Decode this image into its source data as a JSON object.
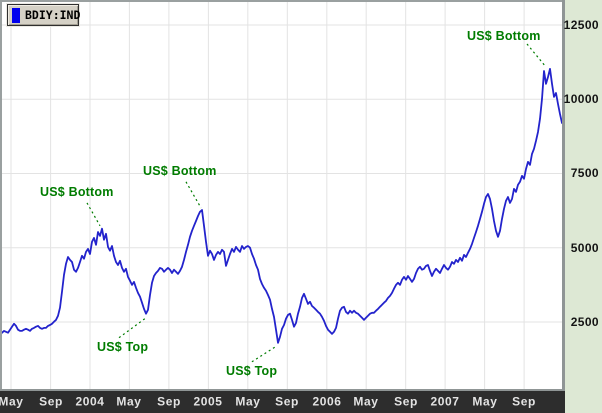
{
  "legend": {
    "label": "BDIY:IND",
    "symbol_color": "#0000ee"
  },
  "chart_data": {
    "type": "line",
    "title": "",
    "xlabel": "",
    "ylabel": "",
    "grid": true,
    "legend_position": "top-left",
    "xlim": [
      2003.24,
      2007.987
    ],
    "ylim": [
      244,
      13274
    ],
    "x_axis": {
      "ticks": [
        {
          "label": "May",
          "t": 2003.333
        },
        {
          "label": "Sep",
          "t": 2003.667
        },
        {
          "label": "2004",
          "t": 2004.0
        },
        {
          "label": "May",
          "t": 2004.333
        },
        {
          "label": "Sep",
          "t": 2004.667
        },
        {
          "label": "2005",
          "t": 2005.0
        },
        {
          "label": "May",
          "t": 2005.333
        },
        {
          "label": "Sep",
          "t": 2005.667
        },
        {
          "label": "2006",
          "t": 2006.0
        },
        {
          "label": "May",
          "t": 2006.333
        },
        {
          "label": "Sep",
          "t": 2006.667
        },
        {
          "label": "2007",
          "t": 2007.0
        },
        {
          "label": "May",
          "t": 2007.333
        },
        {
          "label": "Sep",
          "t": 2007.667
        }
      ]
    },
    "y_axis": {
      "ticks": [
        {
          "label": "12500",
          "v": 12500
        },
        {
          "label": "10000",
          "v": 10000
        },
        {
          "label": "7500",
          "v": 7500
        },
        {
          "label": "5000",
          "v": 5000
        },
        {
          "label": "2500",
          "v": 2500
        }
      ]
    },
    "series": [
      {
        "name": "BDIY:IND",
        "color": "#2323cc",
        "t_start": 2003.24,
        "t_step": 0.016892,
        "values": [
          2070,
          2140,
          2200,
          2170,
          2140,
          2240,
          2340,
          2440,
          2370,
          2240,
          2200,
          2200,
          2240,
          2270,
          2240,
          2200,
          2270,
          2300,
          2340,
          2370,
          2300,
          2270,
          2300,
          2300,
          2370,
          2400,
          2440,
          2510,
          2570,
          2710,
          2980,
          3520,
          4090,
          4460,
          4690,
          4590,
          4520,
          4260,
          4190,
          4320,
          4520,
          4730,
          4630,
          4860,
          4960,
          4790,
          5200,
          5330,
          5100,
          5530,
          5400,
          5640,
          5270,
          5470,
          5030,
          4900,
          5060,
          4730,
          4520,
          4420,
          4560,
          4320,
          4190,
          4290,
          4020,
          3890,
          3750,
          3850,
          3650,
          3480,
          3350,
          3150,
          2940,
          2780,
          2910,
          3410,
          3820,
          4050,
          4150,
          4220,
          4320,
          4290,
          4190,
          4260,
          4320,
          4260,
          4150,
          4260,
          4190,
          4120,
          4220,
          4360,
          4590,
          4860,
          5100,
          5370,
          5570,
          5740,
          5900,
          6070,
          6210,
          6270,
          5740,
          5200,
          4730,
          4900,
          4790,
          4590,
          4760,
          4860,
          4790,
          4930,
          4860,
          4390,
          4590,
          4790,
          4960,
          4860,
          5030,
          4930,
          4860,
          5060,
          4960,
          5030,
          5060,
          5000,
          4790,
          4630,
          4420,
          4260,
          3950,
          3780,
          3650,
          3550,
          3410,
          3250,
          2940,
          2670,
          2240,
          1800,
          2000,
          2270,
          2400,
          2610,
          2740,
          2780,
          2570,
          2340,
          2470,
          2780,
          3010,
          3310,
          3450,
          3280,
          3110,
          3180,
          3040,
          2980,
          2910,
          2840,
          2780,
          2670,
          2540,
          2370,
          2240,
          2170,
          2100,
          2170,
          2300,
          2610,
          2880,
          2980,
          3010,
          2840,
          2780,
          2880,
          2810,
          2880,
          2810,
          2780,
          2710,
          2640,
          2570,
          2640,
          2710,
          2780,
          2810,
          2810,
          2880,
          2940,
          3010,
          3080,
          3150,
          3210,
          3310,
          3380,
          3480,
          3620,
          3750,
          3820,
          3750,
          3920,
          4020,
          3920,
          4050,
          3950,
          3850,
          3950,
          4150,
          4290,
          4360,
          4260,
          4290,
          4390,
          4420,
          4220,
          4050,
          4190,
          4290,
          4220,
          4150,
          4290,
          4420,
          4320,
          4260,
          4360,
          4520,
          4460,
          4590,
          4520,
          4660,
          4560,
          4760,
          4690,
          4830,
          4960,
          5130,
          5330,
          5530,
          5740,
          5970,
          6210,
          6480,
          6710,
          6810,
          6640,
          6310,
          5900,
          5570,
          5370,
          5570,
          5970,
          6310,
          6580,
          6710,
          6510,
          6640,
          6980,
          6880,
          7120,
          7220,
          7420,
          7320,
          7650,
          7890,
          7790,
          8160,
          8330,
          8600,
          8900,
          9340,
          10010,
          10950,
          10520,
          10750,
          11020,
          10520,
          10080,
          10210,
          9840,
          9500,
          9200
        ]
      }
    ],
    "annotations": [
      {
        "text": "US$ Bottom",
        "label_at": {
          "t": 2003.578,
          "v": 7120
        },
        "line": [
          {
            "t": 2003.975,
            "v": 6510
          },
          {
            "t": 2004.085,
            "v": 5740
          }
        ]
      },
      {
        "text": "US$ Bottom",
        "label_at": {
          "t": 2004.448,
          "v": 7820
        },
        "line": [
          {
            "t": 2004.811,
            "v": 7220
          },
          {
            "t": 2004.938,
            "v": 6340
          }
        ]
      },
      {
        "text": "US$ Bottom",
        "label_at": {
          "t": 2007.184,
          "v": 12370
        },
        "line": [
          {
            "t": 2007.691,
            "v": 11860
          },
          {
            "t": 2007.851,
            "v": 11090
          }
        ]
      },
      {
        "text": "US$ Top",
        "label_at": {
          "t": 2004.059,
          "v": 1900
        },
        "line": [
          {
            "t": 2004.245,
            "v": 1970
          },
          {
            "t": 2004.473,
            "v": 2640
          }
        ]
      },
      {
        "text": "US$ Top",
        "label_at": {
          "t": 2005.149,
          "v": 1090
        },
        "line": [
          {
            "t": 2005.368,
            "v": 1160
          },
          {
            "t": 2005.58,
            "v": 1700
          }
        ]
      }
    ],
    "colors": {
      "line": "#2323cc",
      "annotation": "#007c00",
      "grid": "#e3e3e3",
      "panel_bg": "#dde8d4",
      "axis_bar_bg": "#2d2d2d",
      "axis_bar_text": "#e3e3e3",
      "legend_bg": "#d5d1c6"
    }
  }
}
